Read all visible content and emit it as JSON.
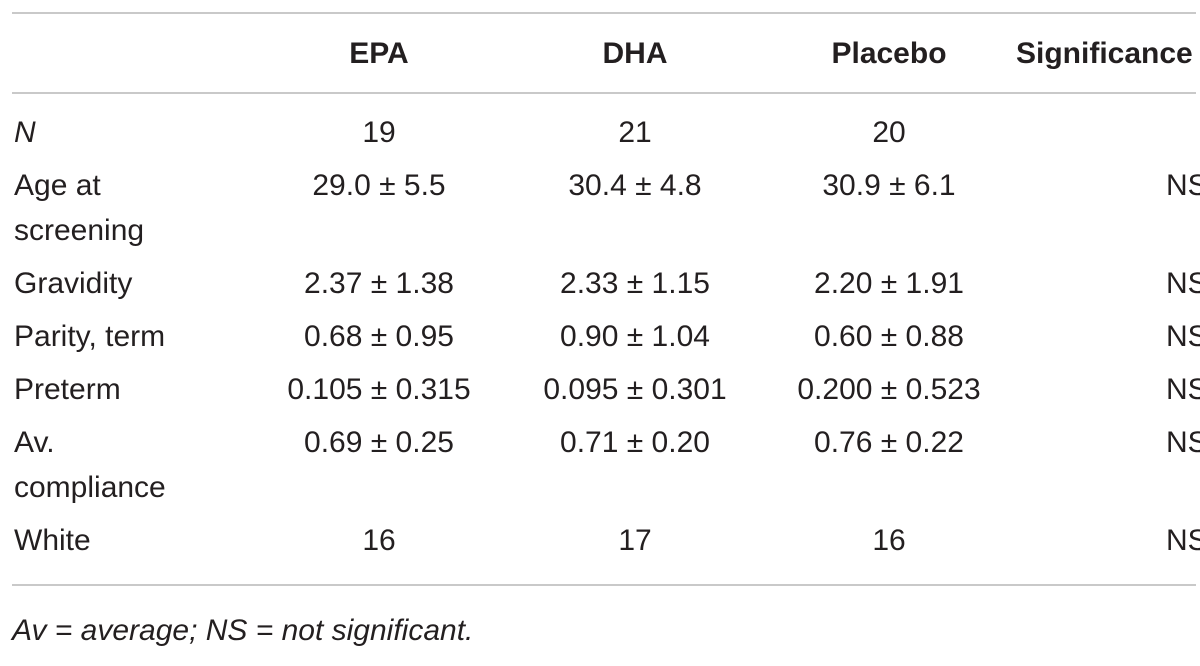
{
  "table": {
    "headers": [
      "",
      "EPA",
      "DHA",
      "Placebo",
      "Significance"
    ],
    "rows": [
      {
        "label_lines": [
          "N"
        ],
        "italic_label": true,
        "epa": "19",
        "dha": "21",
        "placebo": "20",
        "significance": ""
      },
      {
        "label_lines": [
          "Age at",
          "screening"
        ],
        "italic_label": false,
        "epa": "29.0 ± 5.5",
        "dha": "30.4 ± 4.8",
        "placebo": "30.9 ± 6.1",
        "significance": "NS"
      },
      {
        "label_lines": [
          "Gravidity"
        ],
        "italic_label": false,
        "epa": "2.37 ± 1.38",
        "dha": "2.33 ± 1.15",
        "placebo": "2.20 ± 1.91",
        "significance": "NS"
      },
      {
        "label_lines": [
          "Parity, term"
        ],
        "italic_label": false,
        "epa": "0.68 ± 0.95",
        "dha": "0.90 ± 1.04",
        "placebo": "0.60 ± 0.88",
        "significance": "NS"
      },
      {
        "label_lines": [
          "Preterm"
        ],
        "italic_label": false,
        "epa": "0.105 ± 0.315",
        "dha": "0.095 ± 0.301",
        "placebo": "0.200 ± 0.523",
        "significance": "NS"
      },
      {
        "label_lines": [
          "Av.",
          "compliance"
        ],
        "italic_label": false,
        "epa": "0.69 ± 0.25",
        "dha": "0.71 ± 0.20",
        "placebo": "0.76 ± 0.22",
        "significance": "NS"
      },
      {
        "label_lines": [
          "White"
        ],
        "italic_label": false,
        "epa": "16",
        "dha": "17",
        "placebo": "16",
        "significance": "NS"
      }
    ]
  },
  "footnote": "Av = average; NS = not significant."
}
